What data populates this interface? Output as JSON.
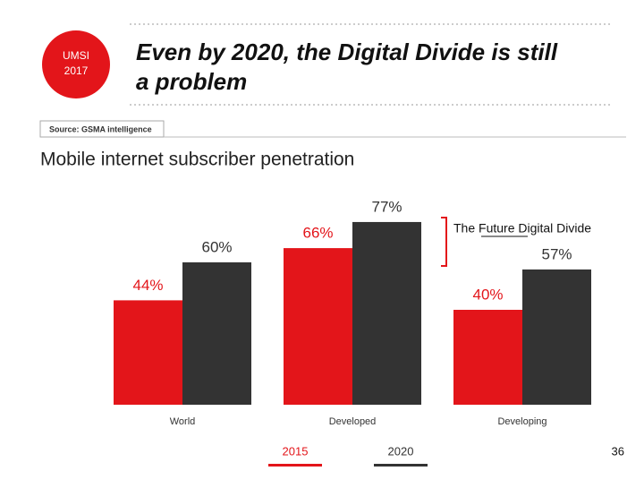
{
  "slide": {
    "badge": [
      "UMSI",
      "2017"
    ],
    "title": [
      "Even by 2020, the Digital Divide is still",
      "a problem"
    ],
    "source": "Source: GSMA intelligence",
    "page_number": 36
  },
  "chart_data": {
    "type": "bar",
    "title": "Mobile internet subscriber penetration",
    "annotation": "The Future Digital Divide",
    "categories": [
      "World",
      "Developed",
      "Developing"
    ],
    "series": [
      {
        "name": "2015",
        "color": "#e3151a",
        "values": [
          44,
          66,
          40
        ],
        "value_labels": [
          "44%",
          "66%",
          "40%"
        ]
      },
      {
        "name": "2020",
        "color": "#333333",
        "values": [
          60,
          77,
          57
        ],
        "value_labels": [
          "60%",
          "77%",
          "57%"
        ]
      }
    ],
    "ylim": [
      0,
      100
    ],
    "grid": false
  }
}
